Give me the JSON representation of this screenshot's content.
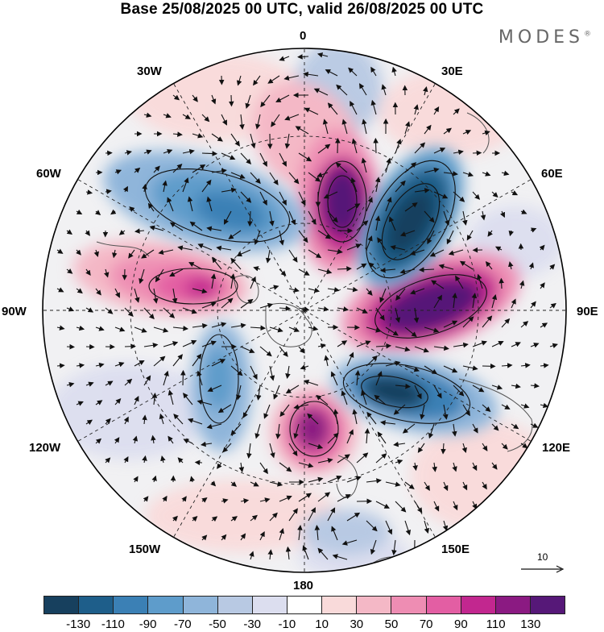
{
  "title": "Base 25/08/2025 00 UTC, valid 26/08/2025 00 UTC",
  "brand": "MODES",
  "brand_mark": "®",
  "meridians": {
    "top": "0",
    "top_right": "30E",
    "right_upper": "60E",
    "right": "90E",
    "right_lower": "120E",
    "bottom_right": "150E",
    "bottom": "180",
    "bottom_left": "150W",
    "left_lower": "120W",
    "left": "90W",
    "left_upper": "60W",
    "top_left": "30W"
  },
  "reference_vector": {
    "label": "10"
  },
  "colorbar": {
    "colors": [
      "#17405e",
      "#1e5e8a",
      "#3b80b5",
      "#5e9ccb",
      "#8fb5da",
      "#b8c9e3",
      "#dcdeef",
      "#ffffff",
      "#f9dada",
      "#f4b8c6",
      "#ee8db3",
      "#e35ea3",
      "#c2278f",
      "#8b1a82",
      "#561878"
    ],
    "tick_labels": [
      "-130",
      "-110",
      "-90",
      "-70",
      "-50",
      "-30",
      "-10",
      "10",
      "30",
      "50",
      "70",
      "90",
      "110",
      "130"
    ]
  },
  "colors": {
    "map_background": "#f1f1f3",
    "frame": "#000000",
    "coast": "#555555"
  }
}
